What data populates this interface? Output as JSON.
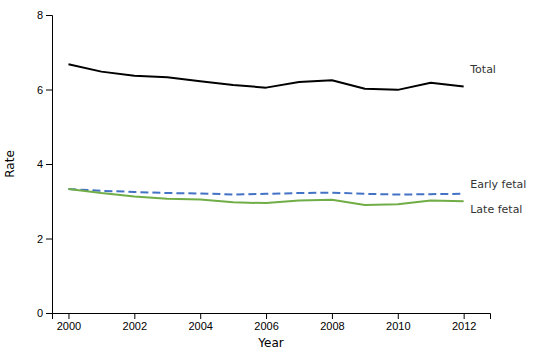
{
  "chart_data": {
    "type": "line",
    "xlabel": "Year",
    "ylabel": "Rate",
    "x": [
      2000,
      2001,
      2002,
      2003,
      2004,
      2005,
      2006,
      2007,
      2008,
      2009,
      2010,
      2011,
      2012
    ],
    "series": [
      {
        "values": [
          6.68,
          6.48,
          6.37,
          6.33,
          6.22,
          6.12,
          6.05,
          6.2,
          6.25,
          6.02,
          5.99,
          6.18,
          6.08
        ],
        "color": "#000000",
        "line_style": "solid"
      },
      {
        "values": [
          3.33,
          3.28,
          3.25,
          3.22,
          3.21,
          3.18,
          3.2,
          3.22,
          3.23,
          3.2,
          3.18,
          3.19,
          3.2
        ],
        "color": "#4472c4",
        "line_style": "dashed"
      },
      {
        "values": [
          3.33,
          3.22,
          3.13,
          3.07,
          3.05,
          2.97,
          2.95,
          3.02,
          3.04,
          2.9,
          2.92,
          3.02,
          3.0
        ],
        "color": "#70ad47",
        "line_style": "solid"
      }
    ],
    "xlim": [
      1999.5,
      2012.8
    ],
    "ylim": [
      0,
      8
    ],
    "xticks": [
      2000,
      2002,
      2004,
      2006,
      2008,
      2010,
      2012
    ],
    "yticks": [
      0,
      2,
      4,
      6,
      8
    ],
    "annotations": [
      {
        "text": "Total",
        "x": 2012.2,
        "y": 6.38
      },
      {
        "text": "Early fetal",
        "x": 2012.2,
        "y": 3.3
      },
      {
        "text": "Late fetal",
        "x": 2012.2,
        "y": 2.93
      }
    ]
  }
}
